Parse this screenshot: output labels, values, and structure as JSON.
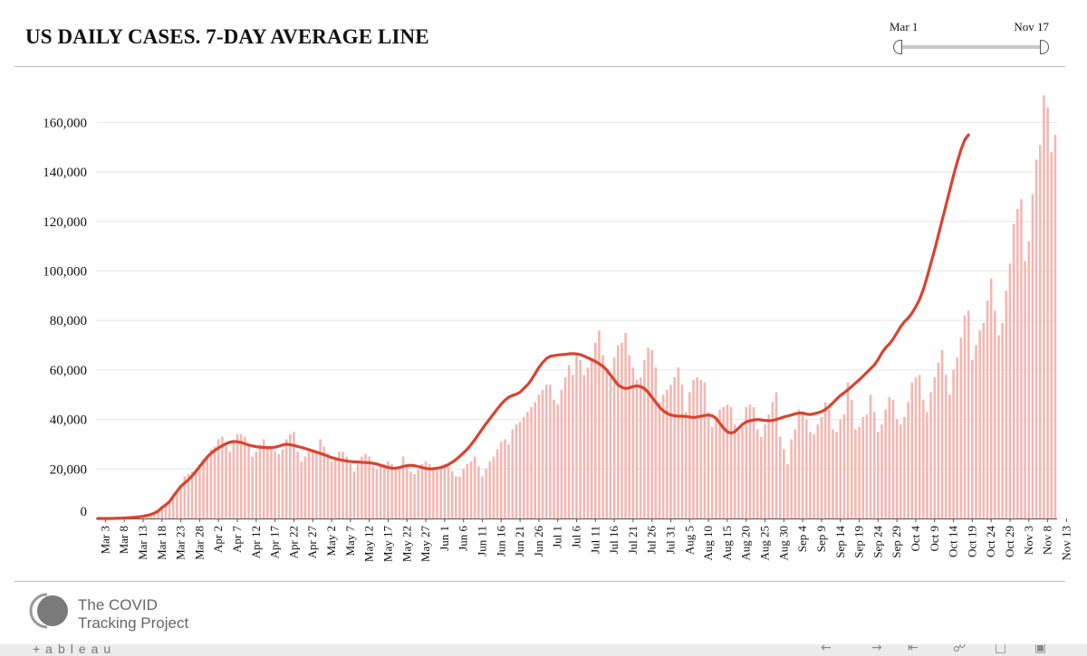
{
  "header": {
    "title": "US DAILY CASES. 7-DAY AVERAGE LINE"
  },
  "date_range": {
    "start_label": "Mar 1",
    "end_label": "Nov 17"
  },
  "colors": {
    "bar": "#f4b6b0",
    "line": "#d9432f",
    "grid": "#e6e6e6",
    "axis": "#555555"
  },
  "footer": {
    "logo_line1": "The COVID",
    "logo_line2": "Tracking Project",
    "tableau_brand": "+ableau",
    "toolbar_icons": [
      "undo-icon",
      "redo-icon",
      "revert-icon",
      "share-icon",
      "download-icon",
      "fullscreen-icon"
    ]
  },
  "chart_data": {
    "type": "bar",
    "title": "US DAILY CASES. 7-DAY AVERAGE LINE",
    "xlabel": "",
    "ylabel": "",
    "ylim": [
      0,
      170000
    ],
    "ytick_values": [
      0,
      20000,
      40000,
      60000,
      80000,
      100000,
      120000,
      140000,
      160000
    ],
    "ytick_labels": [
      "0",
      "20,000",
      "40,000",
      "60,000",
      "80,000",
      "100,000",
      "120,000",
      "140,000",
      "160,000"
    ],
    "first_date": "Mar 1",
    "last_date": "Nov 17",
    "x_tick_labels": [
      "Mar 3",
      "Mar 8",
      "Mar 13",
      "Mar 18",
      "Mar 23",
      "Mar 28",
      "Apr 2",
      "Apr 7",
      "Apr 12",
      "Apr 17",
      "Apr 22",
      "Apr 27",
      "May 2",
      "May 7",
      "May 12",
      "May 17",
      "May 22",
      "May 27",
      "Jun 1",
      "Jun 6",
      "Jun 11",
      "Jun 16",
      "Jun 21",
      "Jun 26",
      "Jul 1",
      "Jul 6",
      "Jul 11",
      "Jul 16",
      "Jul 21",
      "Jul 26",
      "Jul 31",
      "Aug 5",
      "Aug 10",
      "Aug 15",
      "Aug 20",
      "Aug 25",
      "Aug 30",
      "Sep 4",
      "Sep 9",
      "Sep 14",
      "Sep 19",
      "Sep 24",
      "Sep 29",
      "Oct 4",
      "Oct 9",
      "Oct 14",
      "Oct 19",
      "Oct 24",
      "Oct 29",
      "Nov 3",
      "Nov 8",
      "Nov 13"
    ],
    "x_tick_day_index": [
      2,
      7,
      12,
      17,
      22,
      27,
      32,
      37,
      42,
      47,
      52,
      57,
      62,
      67,
      72,
      77,
      82,
      87,
      92,
      97,
      102,
      107,
      112,
      117,
      122,
      127,
      132,
      137,
      142,
      147,
      152,
      157,
      162,
      167,
      172,
      177,
      182,
      187,
      192,
      197,
      202,
      207,
      212,
      217,
      222,
      227,
      232,
      237,
      242,
      247,
      252,
      257
    ],
    "series": [
      {
        "name": "Daily cases",
        "style": "bar",
        "values": [
          0,
          0,
          0,
          0,
          0,
          100,
          100,
          200,
          300,
          400,
          500,
          700,
          900,
          1200,
          1600,
          2200,
          3000,
          4400,
          5500,
          6800,
          9000,
          11000,
          13000,
          17000,
          18000,
          19000,
          20000,
          21000,
          24000,
          25000,
          28000,
          29000,
          32000,
          33000,
          30000,
          27000,
          31000,
          34000,
          34000,
          33000,
          30000,
          25000,
          27000,
          30000,
          32000,
          29000,
          28000,
          27000,
          26000,
          28000,
          32000,
          34000,
          35000,
          27000,
          23000,
          25000,
          27000,
          28000,
          27000,
          32000,
          29000,
          26000,
          23000,
          24000,
          27000,
          27000,
          25000,
          22000,
          19000,
          22000,
          25000,
          26000,
          25000,
          21000,
          20000,
          21000,
          22000,
          23000,
          22000,
          20000,
          21000,
          25000,
          22000,
          19000,
          18000,
          20000,
          22000,
          23000,
          22000,
          20000,
          20000,
          21000,
          22000,
          21000,
          19000,
          17000,
          17000,
          20000,
          22000,
          23000,
          25000,
          21000,
          17000,
          20000,
          23000,
          25000,
          28000,
          31000,
          32000,
          30000,
          36000,
          38000,
          39000,
          41000,
          43000,
          45000,
          47000,
          50000,
          52000,
          54000,
          54000,
          48000,
          46000,
          52000,
          57000,
          62000,
          58000,
          67000,
          64000,
          58000,
          61000,
          64000,
          71000,
          76000,
          66000,
          60000,
          57000,
          65000,
          70000,
          71000,
          75000,
          66000,
          61000,
          56000,
          57000,
          64000,
          69000,
          68000,
          61000,
          47000,
          50000,
          52000,
          54000,
          57000,
          61000,
          54000,
          43000,
          51000,
          56000,
          57000,
          56000,
          55000,
          43000,
          37000,
          40000,
          44000,
          45000,
          46000,
          45000,
          38000,
          35000,
          37000,
          45000,
          46000,
          45000,
          36000,
          33000,
          38000,
          42000,
          47000,
          51000,
          33000,
          28000,
          22000,
          32000,
          36000,
          44000,
          43000,
          40000,
          35000,
          34000,
          38000,
          41000,
          47000,
          44000,
          36000,
          35000,
          40000,
          42000,
          55000,
          48000,
          36000,
          37000,
          41000,
          42000,
          50000,
          43000,
          35000,
          38000,
          44000,
          49000,
          48000,
          40000,
          38000,
          41000,
          47000,
          55000,
          57000,
          58000,
          48000,
          43000,
          51000,
          57000,
          63000,
          68000,
          58000,
          50000,
          60000,
          65000,
          73000,
          82000,
          84000,
          64000,
          70000,
          76000,
          79000,
          88000,
          97000,
          84000,
          74000,
          79000,
          92000,
          103000,
          119000,
          125000,
          129000,
          104000,
          112000,
          131000,
          145000,
          151000,
          171000,
          166000,
          148000,
          155000
        ]
      },
      {
        "name": "7-day average",
        "style": "line",
        "values": [
          0,
          0,
          0,
          0,
          0,
          100,
          100,
          200,
          300,
          400,
          500,
          700,
          900,
          1200,
          1600,
          2200,
          3000,
          4400,
          5500,
          6800,
          9000,
          11000,
          13000,
          14300,
          15600,
          17200,
          19000,
          21000,
          22900,
          24800,
          26300,
          27500,
          28500,
          29400,
          30200,
          30800,
          31100,
          31000,
          30700,
          30200,
          29700,
          29300,
          29000,
          28800,
          28700,
          28600,
          28600,
          28800,
          29200,
          29700,
          30000,
          29800,
          29500,
          29100,
          28700,
          28300,
          27800,
          27300,
          26800,
          26300,
          25800,
          25200,
          24600,
          24200,
          23800,
          23500,
          23200,
          23000,
          22900,
          22800,
          22700,
          22600,
          22500,
          22300,
          22000,
          21500,
          21000,
          20600,
          20300,
          20300,
          20600,
          21000,
          21300,
          21500,
          21300,
          21000,
          20600,
          20200,
          20000,
          20100,
          20300,
          20600,
          21100,
          21800,
          22700,
          23800,
          25100,
          26500,
          28000,
          29800,
          31800,
          34000,
          36200,
          38300,
          40300,
          42300,
          44300,
          46200,
          47800,
          49000,
          49700,
          50200,
          51000,
          52500,
          54000,
          56000,
          58500,
          61000,
          63000,
          64600,
          65500,
          65800,
          66000,
          66200,
          66300,
          66500,
          66600,
          66500,
          66200,
          65600,
          64900,
          64200,
          63500,
          62500,
          61500,
          60000,
          58000,
          56000,
          54000,
          53000,
          52500,
          52800,
          53300,
          53600,
          53300,
          52500,
          51000,
          49000,
          47000,
          45000,
          43500,
          42500,
          41800,
          41500,
          41300,
          41300,
          41200,
          41000,
          40800,
          41000,
          41300,
          41600,
          41800,
          41500,
          40500,
          38500,
          36500,
          35000,
          34500,
          35000,
          36500,
          38000,
          39000,
          39500,
          39800,
          40000,
          39800,
          39600,
          39500,
          39600,
          40000,
          40500,
          41000,
          41400,
          41800,
          42300,
          42600,
          42600,
          42200,
          42000,
          42300,
          42700,
          43200,
          44000,
          45200,
          46700,
          48200,
          49700,
          50800,
          52000,
          53300,
          54700,
          56000,
          57500,
          59000,
          60500,
          62000,
          64200,
          66900,
          69000,
          70500,
          72500,
          75000,
          77500,
          79500,
          81000,
          83000,
          85500,
          88500,
          92500,
          97500,
          103000,
          108500,
          114500,
          120500,
          126500,
          132500,
          138500,
          144000,
          149000,
          153000,
          155000
        ]
      }
    ]
  }
}
